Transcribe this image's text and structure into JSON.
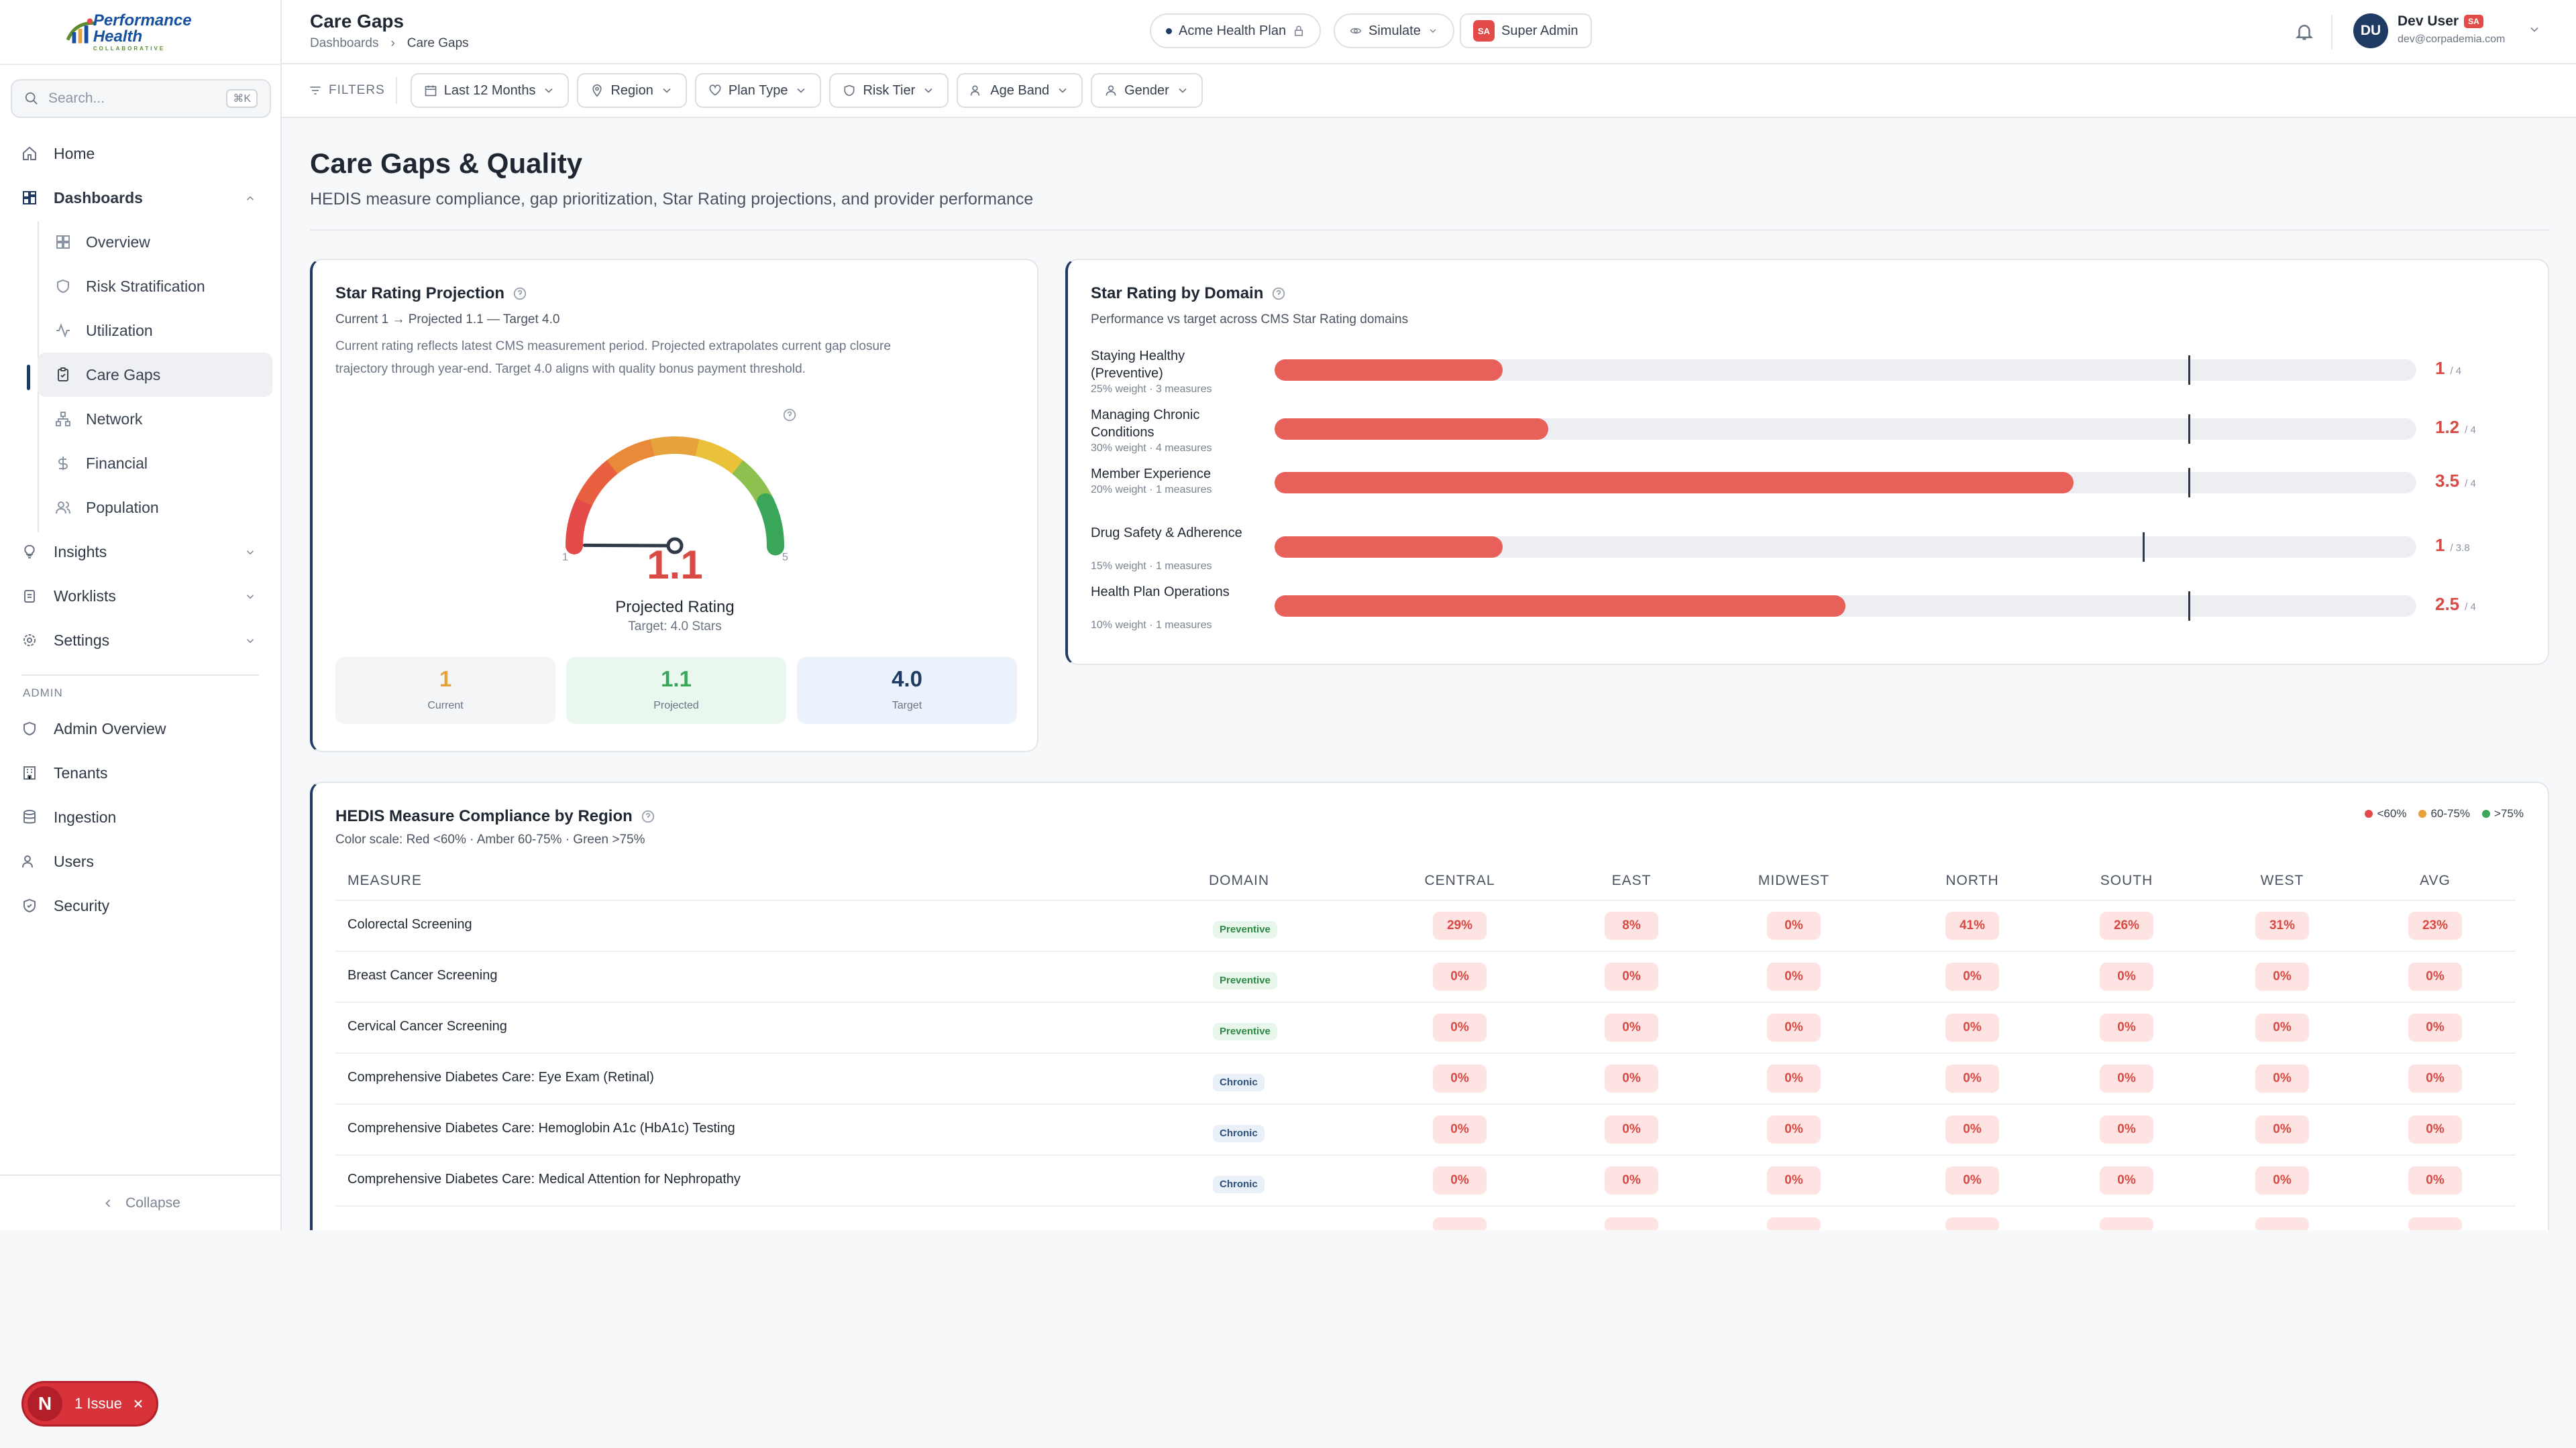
{
  "brand": {
    "name": "Performance Health",
    "tagline": "COLLABORATIVE"
  },
  "search": {
    "placeholder": "Search...",
    "shortcut": "⌘K"
  },
  "nav": {
    "home": "Home",
    "dashboards": "Dashboards",
    "sub": [
      "Overview",
      "Risk Stratification",
      "Utilization",
      "Care Gaps",
      "Network",
      "Financial",
      "Population"
    ],
    "insights": "Insights",
    "worklists": "Worklists",
    "settings": "Settings",
    "admin_label": "ADMIN",
    "admin": [
      "Admin Overview",
      "Tenants",
      "Ingestion",
      "Users",
      "Security"
    ],
    "collapse": "Collapse"
  },
  "header": {
    "title": "Care Gaps",
    "breadcrumb": [
      "Dashboards",
      "Care Gaps"
    ],
    "plan": "Acme Health Plan",
    "simulate": "Simulate",
    "role_badge": "SA",
    "role": "Super Admin",
    "user": {
      "initials": "DU",
      "name": "Dev User",
      "badge": "SA",
      "email": "dev@corpademia.com"
    }
  },
  "filters": {
    "label": "FILTERS",
    "items": [
      "Last 12 Months",
      "Region",
      "Plan Type",
      "Risk Tier",
      "Age Band",
      "Gender"
    ]
  },
  "page": {
    "title": "Care Gaps & Quality",
    "subtitle": "HEDIS measure compliance, gap prioritization, Star Rating projections, and provider performance"
  },
  "projection": {
    "title": "Star Rating Projection",
    "subtitle": "Current 1 → Projected 1.1 — Target 4.0",
    "desc1": "Current rating reflects latest CMS measurement period. Projected extrapolates current gap closure",
    "desc2": "trajectory through year-end. Target 4.0 aligns with quality bonus payment threshold.",
    "gauge_min": "1",
    "gauge_max": "5",
    "projected_value": "1.1",
    "projected_label": "Projected Rating",
    "target_label": "Target: 4.0 Stars",
    "gauge_fraction": 0.025,
    "stats": [
      {
        "value": "1",
        "label": "Current",
        "color": "#e6a23c"
      },
      {
        "value": "1.1",
        "label": "Projected",
        "color": "#3aa65a"
      },
      {
        "value": "4.0",
        "label": "Target",
        "color": "#1f3b64"
      }
    ]
  },
  "domain": {
    "title": "Star Rating by Domain",
    "subtitle": "Performance vs target across CMS Star Rating domains",
    "rows": [
      {
        "name": "Staying Healthy (Preventive)",
        "meta": "25% weight · 3 measures",
        "value": "1",
        "max": "/ 4",
        "v": 1,
        "target": 4
      },
      {
        "name": "Managing Chronic Conditions",
        "meta": "30% weight · 4 measures",
        "value": "1.2",
        "max": "/ 4",
        "v": 1.2,
        "target": 4
      },
      {
        "name": "Member Experience",
        "meta": "20% weight · 1 measures",
        "value": "3.5",
        "max": "/ 4",
        "v": 3.5,
        "target": 4
      },
      {
        "name": "Drug Safety & Adherence",
        "meta": "15% weight · 1 measures",
        "value": "1",
        "max": "/ 3.8",
        "v": 1,
        "target": 3.8
      },
      {
        "name": "Health Plan Operations",
        "meta": "10% weight · 1 measures",
        "value": "2.5",
        "max": "/ 4",
        "v": 2.5,
        "target": 4
      }
    ]
  },
  "hedis": {
    "title": "HEDIS Measure Compliance by Region",
    "subtitle": "Color scale: Red <60% · Amber 60-75% · Green >75%",
    "legend": [
      {
        "label": "<60%",
        "color": "#e34a4a"
      },
      {
        "label": "60-75%",
        "color": "#e6a23c"
      },
      {
        "label": ">75%",
        "color": "#3aa65a"
      }
    ],
    "columns": [
      "MEASURE",
      "DOMAIN",
      "CENTRAL",
      "EAST",
      "MIDWEST",
      "NORTH",
      "SOUTH",
      "WEST",
      "AVG"
    ],
    "rows": [
      {
        "measure": "Colorectal Screening",
        "domain": "Preventive",
        "values": [
          "29%",
          "8%",
          "0%",
          "41%",
          "26%",
          "31%",
          "23%"
        ]
      },
      {
        "measure": "Breast Cancer Screening",
        "domain": "Preventive",
        "values": [
          "0%",
          "0%",
          "0%",
          "0%",
          "0%",
          "0%",
          "0%"
        ]
      },
      {
        "measure": "Cervical Cancer Screening",
        "domain": "Preventive",
        "values": [
          "0%",
          "0%",
          "0%",
          "0%",
          "0%",
          "0%",
          "0%"
        ]
      },
      {
        "measure": "Comprehensive Diabetes Care: Eye Exam (Retinal)",
        "domain": "Chronic",
        "values": [
          "0%",
          "0%",
          "0%",
          "0%",
          "0%",
          "0%",
          "0%"
        ]
      },
      {
        "measure": "Comprehensive Diabetes Care: Hemoglobin A1c (HbA1c) Testing",
        "domain": "Chronic",
        "values": [
          "0%",
          "0%",
          "0%",
          "0%",
          "0%",
          "0%",
          "0%"
        ]
      },
      {
        "measure": "Comprehensive Diabetes Care: Medical Attention for Nephropathy",
        "domain": "Chronic",
        "values": [
          "0%",
          "0%",
          "0%",
          "0%",
          "0%",
          "0%",
          "0%"
        ]
      }
    ]
  },
  "issue": {
    "badge": "N",
    "label": "1 Issue"
  }
}
